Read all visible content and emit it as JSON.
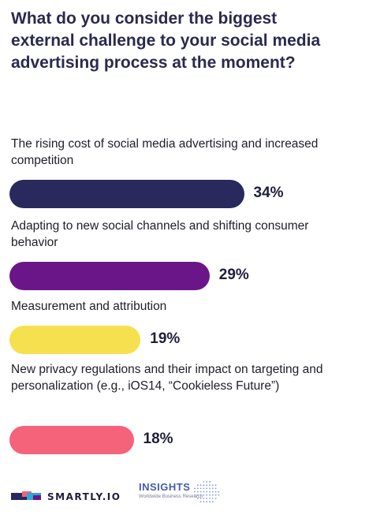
{
  "title": "What do you consider the biggest external challenge to your social media advertising process at the moment?",
  "chart_data": {
    "type": "bar",
    "orientation": "horizontal",
    "categories": [
      "The rising cost of social media advertising and increased competition",
      "Adapting to new social channels and shifting consumer behavior",
      "Measurement and attribution",
      "New privacy regulations and their impact on targeting and personalization (e.g., iOS14, “Cookieless Future”)"
    ],
    "values": [
      34,
      29,
      19,
      18
    ],
    "value_labels": [
      "34%",
      "29%",
      "19%",
      "18%"
    ],
    "colors": [
      "#29295e",
      "#6b1688",
      "#f5e04f",
      "#f5637a"
    ],
    "grid": false,
    "legend": "none"
  },
  "footer": {
    "brand": "SMARTLY.IO",
    "insights_title": "INSIGHTS",
    "insights_subtitle": "Worldwide Business Research",
    "brand_icon": "smartly-logo-icon",
    "globe_icon": "dotted-globe-icon"
  }
}
